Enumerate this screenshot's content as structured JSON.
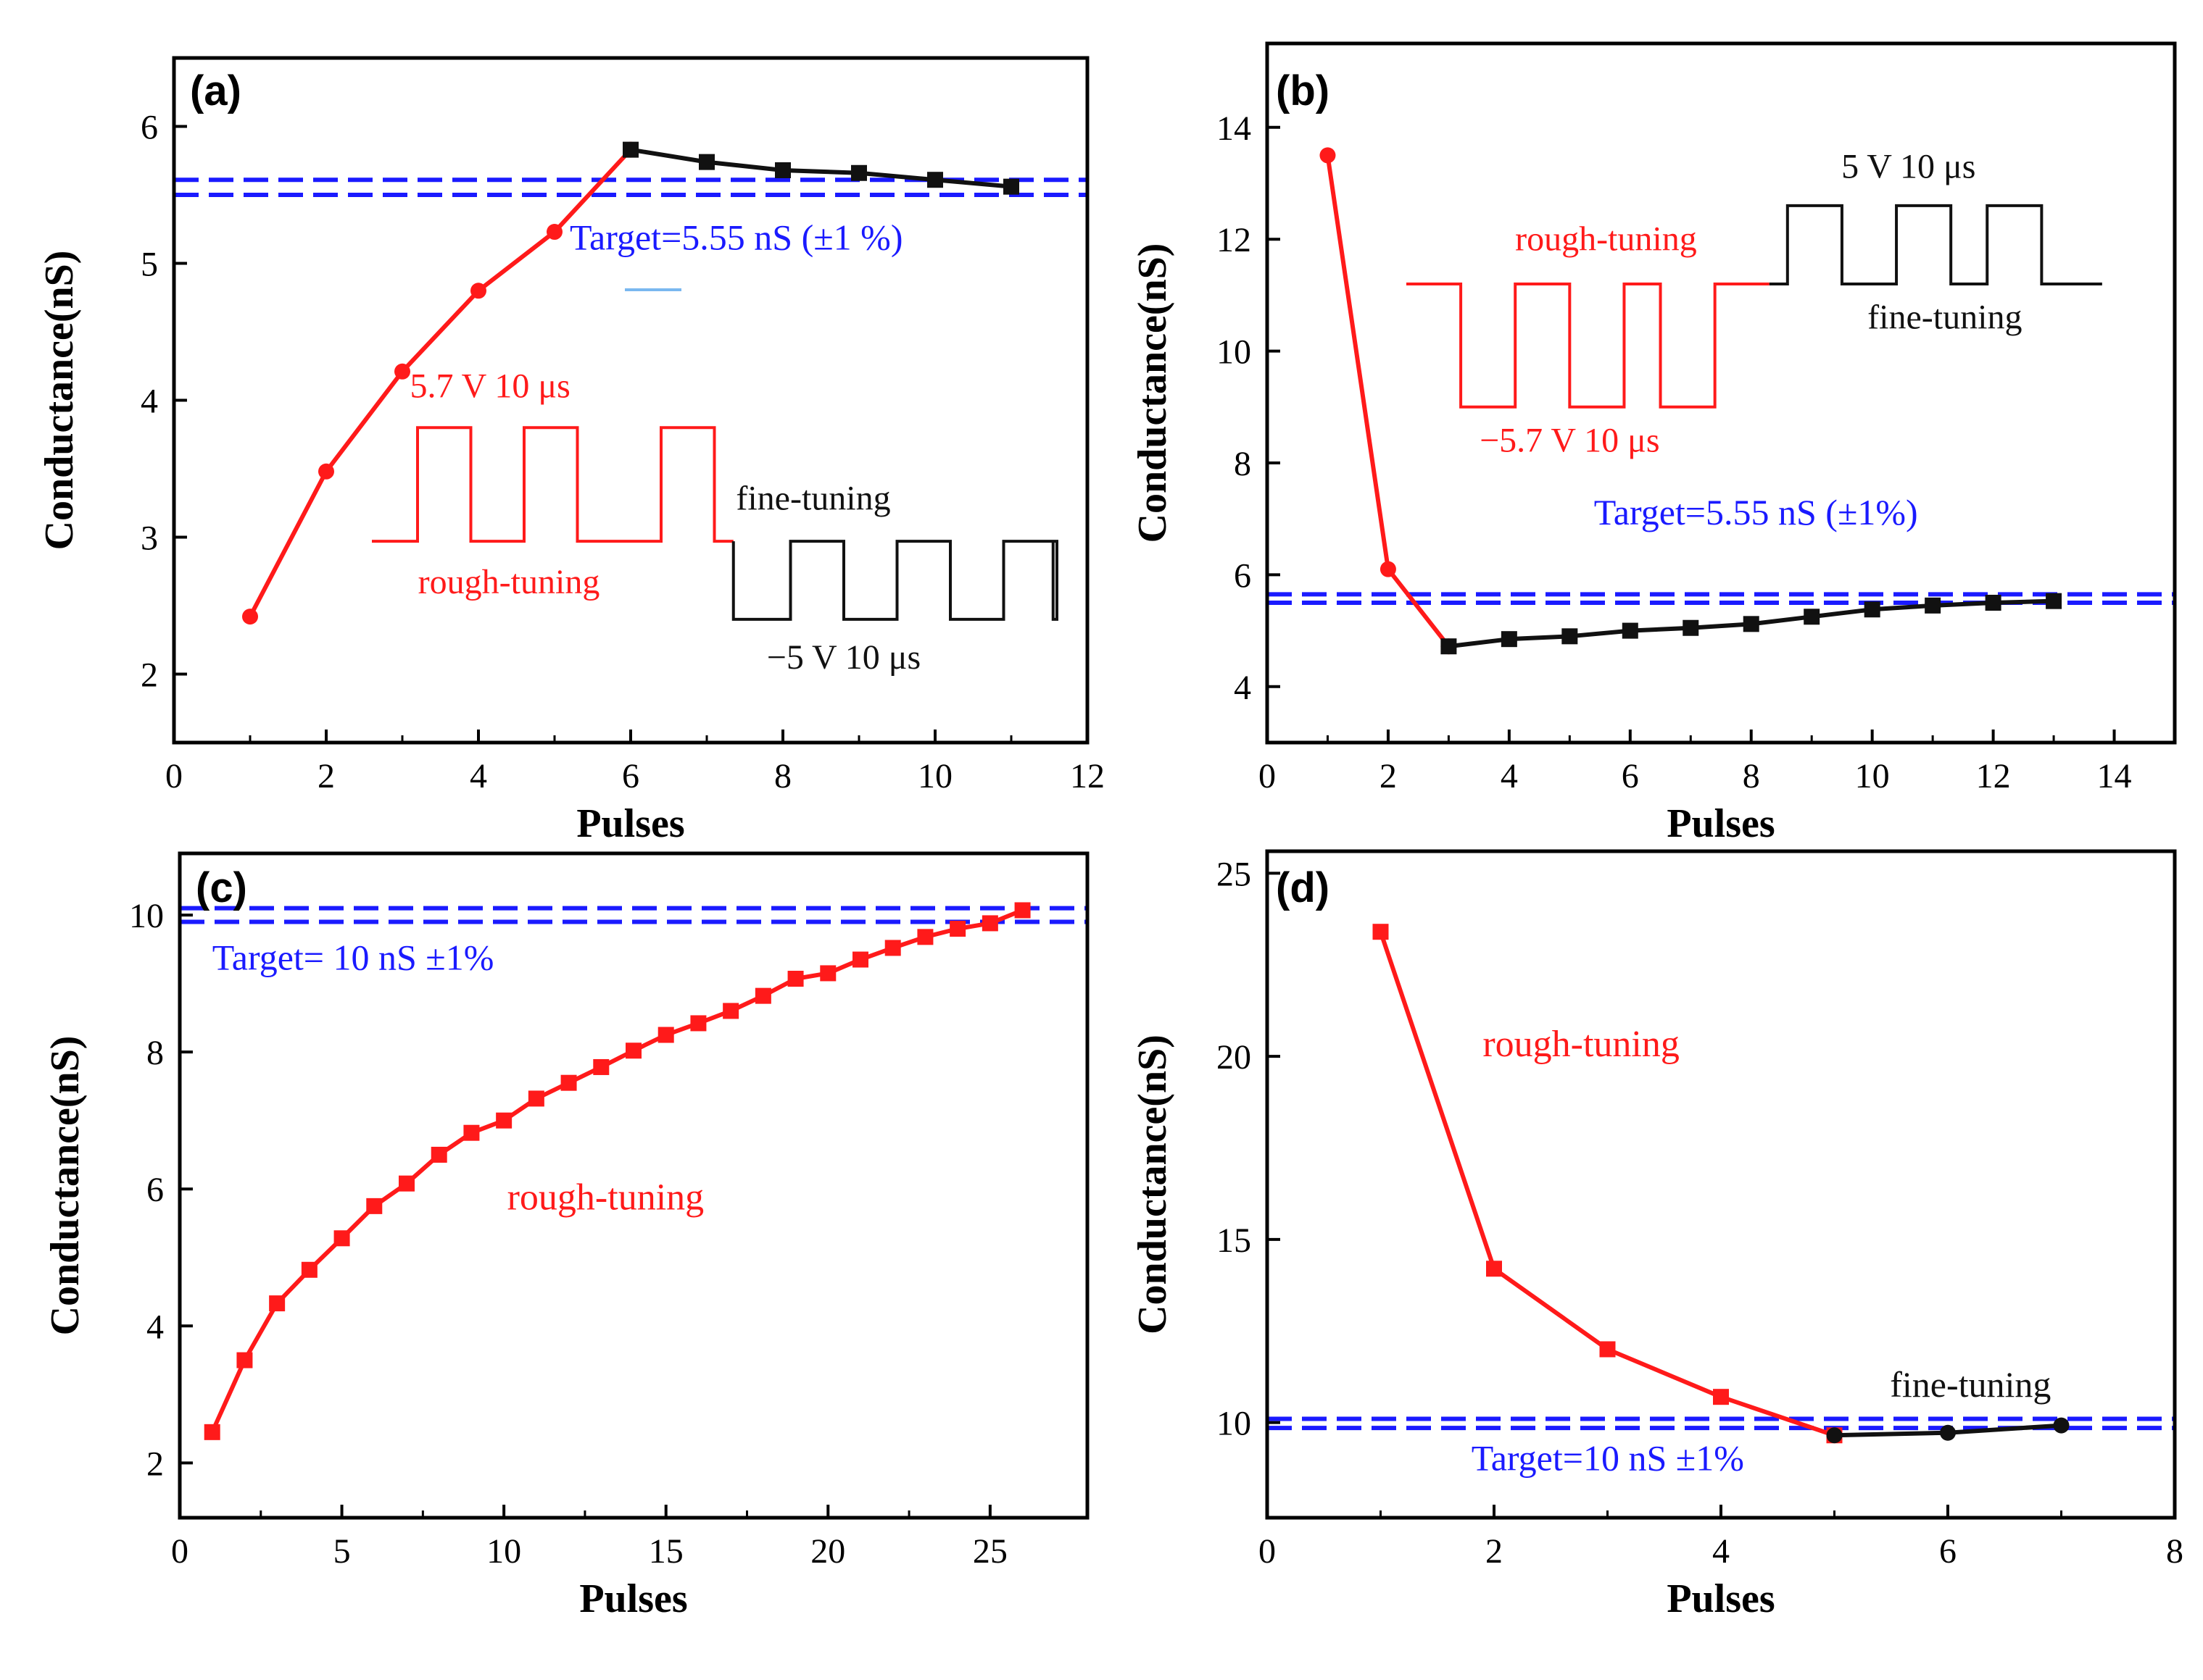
{
  "colors": {
    "rough": "#ff1a1a",
    "fine": "#111111",
    "target": "#1a1aff",
    "axis": "#000000"
  },
  "chart_data": [
    {
      "id": "a",
      "type": "line",
      "panel_label": "(a)",
      "xlabel": "Pulses",
      "ylabel": "Conductance(nS)",
      "xlim": [
        0,
        12
      ],
      "ylim": [
        1.5,
        6.5
      ],
      "xticks": [
        0,
        2,
        4,
        6,
        8,
        10,
        12
      ],
      "yticks": [
        2,
        3,
        4,
        5,
        6
      ],
      "target_lines": [
        5.5,
        5.61
      ],
      "series": [
        {
          "name": "rough-tuning",
          "color": "rough",
          "marker": "circle",
          "x": [
            1,
            2,
            3,
            4,
            5,
            6
          ],
          "y": [
            2.42,
            3.48,
            4.21,
            4.8,
            5.23,
            5.83
          ]
        },
        {
          "name": "fine-tuning",
          "color": "fine",
          "marker": "square",
          "x": [
            6,
            7,
            8,
            9,
            10,
            11
          ],
          "y": [
            5.83,
            5.74,
            5.68,
            5.66,
            5.61,
            5.56
          ]
        }
      ],
      "annotations": [
        {
          "text": "Target=5.55 nS (±1 %)",
          "color": "target",
          "x": 5.2,
          "y": 5.1,
          "anchor": "start",
          "size": 50
        },
        {
          "text": "5.7 V 10 μs",
          "color": "rough",
          "x": 3.1,
          "y": 4.02,
          "anchor": "start",
          "size": 48
        },
        {
          "text": "fine-tuning",
          "color": "fine",
          "x": 8.4,
          "y": 3.2,
          "anchor": "middle",
          "size": 48
        },
        {
          "text": "rough-tuning",
          "color": "rough",
          "x": 4.4,
          "y": 2.59,
          "anchor": "middle",
          "size": 48
        },
        {
          "text": "−5 V 10 μs",
          "color": "fine",
          "x": 8.8,
          "y": 2.04,
          "anchor": "middle",
          "size": 48
        }
      ],
      "waveforms": [
        {
          "color": "rough",
          "base": 2.97,
          "level": 3.8,
          "xs": [
            2.6,
            3.2,
            3.9,
            4.6,
            5.3,
            6.4,
            7.1,
            7.35
          ],
          "dotted": [
            5.3,
            5.9
          ]
        },
        {
          "color": "fine",
          "base": 2.97,
          "level": 2.4,
          "xs": [
            7.35,
            7.35,
            8.1,
            8.8,
            9.5,
            10.2,
            10.9,
            11.6,
            11.55
          ],
          "dotted": [
            9.65,
            10.25
          ],
          "neg": true
        }
      ]
    },
    {
      "id": "b",
      "type": "line",
      "panel_label": "(b)",
      "xlabel": "Pulses",
      "ylabel": "Conductance(nS)",
      "xlim": [
        0,
        15
      ],
      "ylim": [
        3,
        15.5
      ],
      "xticks": [
        0,
        2,
        4,
        6,
        8,
        10,
        12,
        14
      ],
      "yticks": [
        4,
        6,
        8,
        10,
        12,
        14
      ],
      "target_lines": [
        5.5,
        5.65
      ],
      "series": [
        {
          "name": "rough-tuning",
          "color": "rough",
          "marker": "circle",
          "x": [
            1,
            2,
            3
          ],
          "y": [
            13.5,
            6.1,
            4.72
          ]
        },
        {
          "name": "fine-tuning",
          "color": "fine",
          "marker": "square",
          "x": [
            3,
            4,
            5,
            6,
            7,
            8,
            9,
            10,
            11,
            12,
            13
          ],
          "y": [
            4.72,
            4.85,
            4.9,
            5.0,
            5.05,
            5.12,
            5.25,
            5.38,
            5.45,
            5.5,
            5.53
          ]
        }
      ],
      "annotations": [
        {
          "text": "5 V 10 μs",
          "color": "fine",
          "x": 10.6,
          "y": 13.1,
          "anchor": "middle",
          "size": 48
        },
        {
          "text": "rough-tuning",
          "color": "rough",
          "x": 5.6,
          "y": 11.8,
          "anchor": "middle",
          "size": 48
        },
        {
          "text": "fine-tuning",
          "color": "fine",
          "x": 11.2,
          "y": 10.4,
          "anchor": "middle",
          "size": 48
        },
        {
          "text": "−5.7 V 10 μs",
          "color": "rough",
          "x": 5.0,
          "y": 8.2,
          "anchor": "middle",
          "size": 48
        },
        {
          "text": "Target=5.55 nS (±1%)",
          "color": "target",
          "x": 5.4,
          "y": 6.9,
          "anchor": "start",
          "size": 50
        }
      ],
      "waveforms": [
        {
          "color": "rough",
          "base": 11.2,
          "level": 9.0,
          "xs": [
            2.3,
            3.2,
            4.1,
            5.0,
            5.9,
            6.5,
            7.4,
            8.3
          ],
          "dotted": [
            5.9,
            6.5
          ],
          "neg": true
        },
        {
          "color": "fine",
          "base": 11.2,
          "level": 12.6,
          "xs": [
            8.3,
            8.6,
            9.5,
            10.4,
            11.3,
            11.9,
            12.8,
            13.8
          ],
          "dotted": [
            11.3,
            11.9
          ]
        }
      ]
    },
    {
      "id": "c",
      "type": "line",
      "panel_label": "(c)",
      "xlabel": "Pulses",
      "ylabel": "Conductance(nS)",
      "xlim": [
        0,
        28
      ],
      "ylim": [
        1.2,
        10.9
      ],
      "xticks": [
        0,
        5,
        10,
        15,
        20,
        25
      ],
      "yticks": [
        2,
        4,
        6,
        8,
        10
      ],
      "target_lines": [
        9.9,
        10.1
      ],
      "series": [
        {
          "name": "rough-tuning",
          "color": "rough",
          "marker": "square",
          "x": [
            1,
            2,
            3,
            4,
            5,
            6,
            7,
            8,
            9,
            10,
            11,
            12,
            13,
            14,
            15,
            16,
            17,
            18,
            19,
            20,
            21,
            22,
            23,
            24,
            25,
            26
          ],
          "y": [
            2.45,
            3.5,
            4.33,
            4.82,
            5.28,
            5.75,
            6.08,
            6.5,
            6.82,
            7.0,
            7.32,
            7.55,
            7.78,
            8.02,
            8.25,
            8.42,
            8.6,
            8.82,
            9.07,
            9.15,
            9.35,
            9.52,
            9.68,
            9.8,
            9.88,
            10.07
          ]
        }
      ],
      "annotations": [
        {
          "text": "Target= 10 nS ±1%",
          "color": "target",
          "x": 1.0,
          "y": 9.2,
          "anchor": "start",
          "size": 50
        },
        {
          "text": "rough-tuning",
          "color": "rough",
          "x": 10.1,
          "y": 5.7,
          "anchor": "start",
          "size": 52
        }
      ],
      "waveforms": []
    },
    {
      "id": "d",
      "type": "line",
      "panel_label": "(d)",
      "xlabel": "Pulses",
      "ylabel": "Conductance(nS)",
      "xlim": [
        0,
        8
      ],
      "ylim": [
        7.4,
        25.6
      ],
      "xticks": [
        0,
        2,
        4,
        6,
        8
      ],
      "yticks": [
        10,
        15,
        20,
        25
      ],
      "target_lines": [
        9.85,
        10.1
      ],
      "series": [
        {
          "name": "rough-tuning",
          "color": "rough",
          "marker": "square",
          "x": [
            1,
            2,
            3,
            4,
            5
          ],
          "y": [
            23.4,
            14.2,
            12.0,
            10.7,
            9.65
          ]
        },
        {
          "name": "fine-tuning",
          "color": "fine",
          "marker": "circle",
          "x": [
            5,
            6,
            7
          ],
          "y": [
            9.65,
            9.72,
            9.92
          ]
        }
      ],
      "annotations": [
        {
          "text": "rough-tuning",
          "color": "rough",
          "x": 1.9,
          "y": 20.0,
          "anchor": "start",
          "size": 52
        },
        {
          "text": "fine-tuning",
          "color": "fine",
          "x": 6.2,
          "y": 10.7,
          "anchor": "middle",
          "size": 50
        },
        {
          "text": "Target=10 nS ±1%",
          "color": "target",
          "x": 1.8,
          "y": 8.7,
          "anchor": "start",
          "size": 50
        }
      ],
      "waveforms": []
    }
  ]
}
